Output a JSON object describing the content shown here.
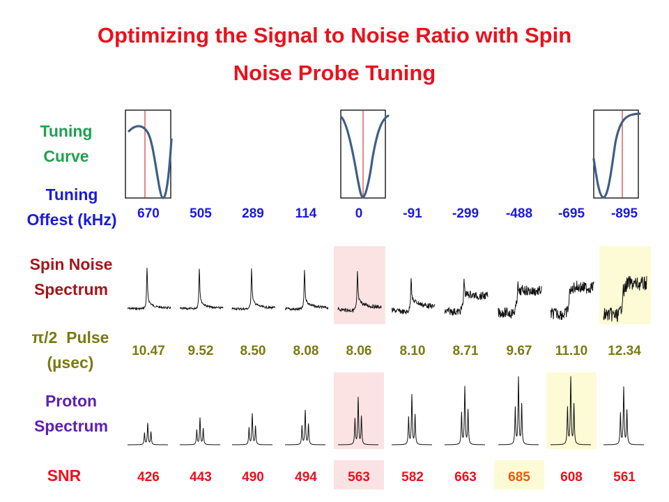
{
  "title": {
    "line1": "Optimizing the Signal to Noise Ratio with Spin",
    "line2": "Noise Probe Tuning"
  },
  "labels": {
    "tuning_curve": [
      "Tuning",
      "Curve"
    ],
    "tuning_offset": [
      "Tuning",
      "Offest (kHz)"
    ],
    "spin_noise": [
      "Spin Noise",
      "Spectrum"
    ],
    "pulse": [
      "π/2  Pulse",
      "(µsec)"
    ],
    "proton": [
      "Proton",
      "Spectrum"
    ],
    "snr": "SNR"
  },
  "colors": {
    "title": "#e8121e",
    "tuning_curve_label": "#1fa050",
    "offset": "#1a1adc",
    "spin_noise_label": "#a3161b",
    "pulse": "#7a7a10",
    "proton_label": "#6020b0",
    "snr": "#e8121e",
    "snr_best": "#e85a10",
    "highlight_pink": "#fbe3e4",
    "highlight_yellow": "#fdfbd5",
    "curve": "#3d5f85",
    "marker": "#cc1111"
  },
  "columns": [
    {
      "offset": "670",
      "pulse": "10.47",
      "snr": "426"
    },
    {
      "offset": "505",
      "pulse": "9.52",
      "snr": "443"
    },
    {
      "offset": "289",
      "pulse": "8.50",
      "snr": "490"
    },
    {
      "offset": "114",
      "pulse": "8.08",
      "snr": "494"
    },
    {
      "offset": "0",
      "pulse": "8.06",
      "snr": "563"
    },
    {
      "offset": "-91",
      "pulse": "8.10",
      "snr": "582"
    },
    {
      "offset": "-299",
      "pulse": "8.71",
      "snr": "663"
    },
    {
      "offset": "-488",
      "pulse": "9.67",
      "snr": "685"
    },
    {
      "offset": "-695",
      "pulse": "11.10",
      "snr": "608"
    },
    {
      "offset": "-895",
      "pulse": "12.34",
      "snr": "561"
    }
  ],
  "proton_heights": [
    0.32,
    0.4,
    0.46,
    0.51,
    0.7,
    0.74,
    0.86,
    1.0,
    1.0,
    0.85
  ],
  "spin_noise_level": [
    0.05,
    0.05,
    0.07,
    0.1,
    0.18,
    0.3,
    0.5,
    0.7,
    0.85,
    1.0
  ],
  "highlights": {
    "spin_noise": [
      {
        "col": 4,
        "color": "pink"
      },
      {
        "col": 9,
        "color": "yellow"
      }
    ],
    "proton": [
      {
        "col": 4,
        "color": "pink"
      },
      {
        "col": 8,
        "color": "yellow"
      }
    ],
    "snr": [
      {
        "col": 4,
        "color": "pink"
      },
      {
        "col": 7,
        "color": "yellow"
      }
    ]
  },
  "tuning_curves": [
    {
      "col": 0,
      "shape": "left"
    },
    {
      "col": 4,
      "shape": "center"
    },
    {
      "col": 9,
      "shape": "right"
    }
  ]
}
